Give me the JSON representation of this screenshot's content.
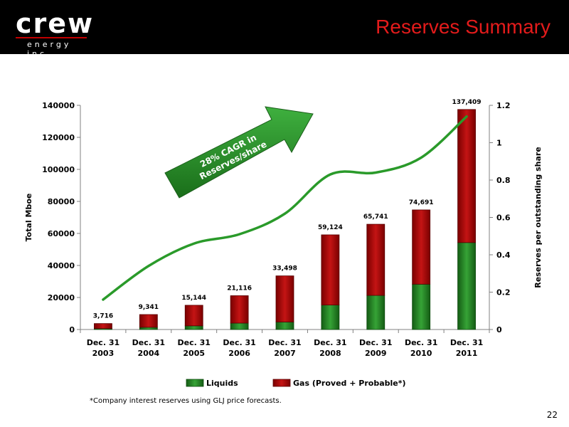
{
  "header": {
    "logo_text": "crew",
    "logo_subtext": "energy inc.",
    "title": "Reserves Summary"
  },
  "footnote": "*Company interest reserves using GLJ price forecasts.",
  "page_number": "22",
  "annotation": {
    "line1": "28% CAGR in",
    "line2": "Reserves/share"
  },
  "colors": {
    "liquids": "#2e8b2e",
    "gas": "#b01010",
    "line": "#2a9a2a",
    "header_bg": "#000000",
    "title": "#e31b1b"
  },
  "chart_data": {
    "type": "bar",
    "stacked": true,
    "title": "",
    "categories": [
      [
        "Dec. 31",
        "2003"
      ],
      [
        "Dec. 31",
        "2004"
      ],
      [
        "Dec. 31",
        "2005"
      ],
      [
        "Dec. 31",
        "2006"
      ],
      [
        "Dec. 31",
        "2007"
      ],
      [
        "Dec. 31",
        "2008"
      ],
      [
        "Dec. 31",
        "2009"
      ],
      [
        "Dec. 31",
        "2010"
      ],
      [
        "Dec. 31",
        "2011"
      ]
    ],
    "series": [
      {
        "name": "Liquids",
        "values": [
          600,
          1400,
          2300,
          4000,
          4700,
          15300,
          21300,
          28300,
          54300
        ]
      },
      {
        "name": "Gas (Proved + Probable*)",
        "values": [
          3116,
          7941,
          12844,
          17116,
          28798,
          43824,
          44441,
          46391,
          83109
        ]
      }
    ],
    "totals_labels": [
      "3,716",
      "9,341",
      "15,144",
      "21,116",
      "33,498",
      "59,124",
      "65,741",
      "74,691",
      "137,409"
    ],
    "ylabel": "Total Mboe",
    "ylim": [
      0,
      140000
    ],
    "yticks": [
      "0",
      "20000",
      "40000",
      "60000",
      "80000",
      "100000",
      "120000",
      "140000"
    ],
    "secondary_axis": {
      "label": "Reserves per outstanding share",
      "ylim": [
        0,
        1.2
      ],
      "yticks": [
        "0",
        "0.2",
        "0.4",
        "0.6",
        "0.8",
        "1",
        "1.2"
      ],
      "line_values": [
        0.16,
        0.34,
        0.46,
        0.51,
        0.62,
        0.83,
        0.84,
        0.92,
        1.14
      ]
    },
    "legend_position": "bottom",
    "grid": false
  }
}
